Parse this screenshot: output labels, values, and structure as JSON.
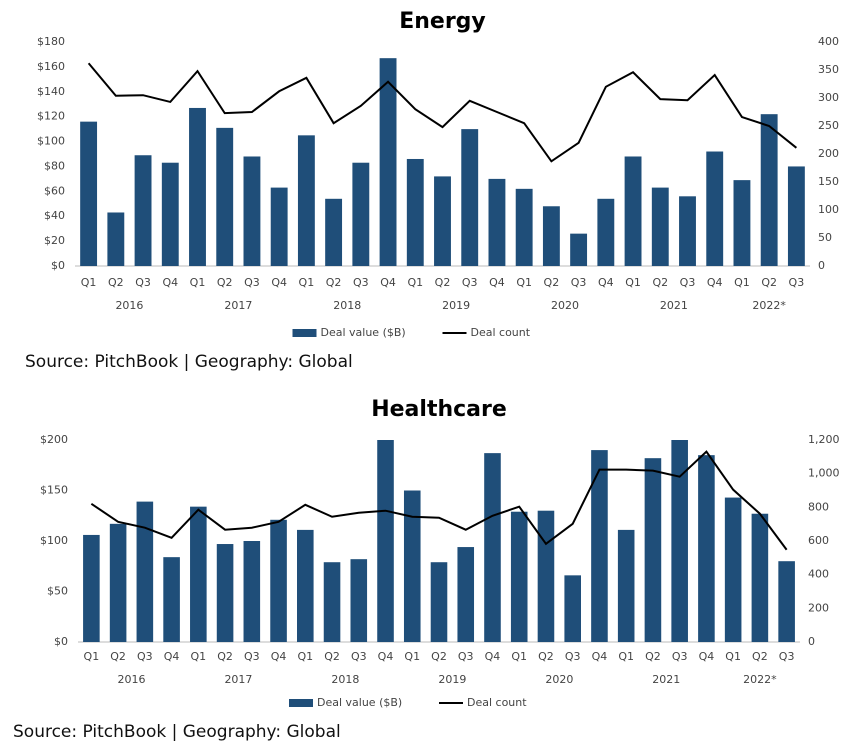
{
  "chart_data": [
    {
      "type": "bar-line",
      "title": "Energy",
      "categories": [
        "Q1",
        "Q2",
        "Q3",
        "Q4",
        "Q1",
        "Q2",
        "Q3",
        "Q4",
        "Q1",
        "Q2",
        "Q3",
        "Q4",
        "Q1",
        "Q2",
        "Q3",
        "Q4",
        "Q1",
        "Q2",
        "Q3",
        "Q4",
        "Q1",
        "Q2",
        "Q3",
        "Q4",
        "Q1",
        "Q2",
        "Q3"
      ],
      "year_labels": [
        "2016",
        "2017",
        "2018",
        "2019",
        "2020",
        "2021",
        "2022*"
      ],
      "series": [
        {
          "name": "Deal value ($B)",
          "type": "bar",
          "color": "#1f4e79",
          "values": [
            116,
            43,
            89,
            83,
            127,
            111,
            88,
            63,
            105,
            54,
            83,
            167,
            86,
            72,
            110,
            70,
            62,
            48,
            26,
            54,
            88,
            63,
            56,
            92,
            69,
            122,
            80
          ]
        },
        {
          "name": "Deal count",
          "type": "line",
          "axis": "y2",
          "color": "#000000",
          "values": [
            362,
            304,
            305,
            293,
            348,
            273,
            275,
            312,
            336,
            255,
            286,
            329,
            280,
            248,
            295,
            275,
            255,
            187,
            220,
            320,
            346,
            298,
            296,
            341,
            266,
            250,
            211
          ]
        }
      ],
      "ylim": [
        0,
        180
      ],
      "yticks": [
        {
          "value": 0,
          "label": "$0"
        },
        {
          "value": 20,
          "label": "$20"
        },
        {
          "value": 40,
          "label": "$40"
        },
        {
          "value": 60,
          "label": "$60"
        },
        {
          "value": 80,
          "label": "$80"
        },
        {
          "value": 100,
          "label": "$100"
        },
        {
          "value": 120,
          "label": "$120"
        },
        {
          "value": 140,
          "label": "$140"
        },
        {
          "value": 160,
          "label": "$160"
        },
        {
          "value": 180,
          "label": "$180"
        }
      ],
      "y2lim": [
        0,
        400
      ],
      "y2ticks": [
        0,
        50,
        100,
        150,
        200,
        250,
        300,
        350,
        400
      ],
      "source": "Source: PitchBook | Geography: Global"
    },
    {
      "type": "bar-line",
      "title": "Healthcare",
      "categories": [
        "Q1",
        "Q2",
        "Q3",
        "Q4",
        "Q1",
        "Q2",
        "Q3",
        "Q4",
        "Q1",
        "Q2",
        "Q3",
        "Q4",
        "Q1",
        "Q2",
        "Q3",
        "Q4",
        "Q1",
        "Q2",
        "Q3",
        "Q4",
        "Q1",
        "Q2",
        "Q3",
        "Q4",
        "Q1",
        "Q2",
        "Q3"
      ],
      "year_labels": [
        "2016",
        "2017",
        "2018",
        "2019",
        "2020",
        "2021",
        "2022*"
      ],
      "series": [
        {
          "name": "Deal value ($B)",
          "type": "bar",
          "color": "#1f4e79",
          "values": [
            106,
            117,
            139,
            84,
            134,
            97,
            100,
            121,
            111,
            79,
            82,
            200,
            150,
            79,
            94,
            187,
            129,
            130,
            66,
            190,
            111,
            182,
            200,
            185,
            143,
            127,
            80
          ]
        },
        {
          "name": "Deal count",
          "type": "line",
          "axis": "y2",
          "color": "#000000",
          "values": [
            821,
            714,
            679,
            619,
            786,
            667,
            679,
            714,
            815,
            744,
            768,
            780,
            744,
            738,
            667,
            750,
            804,
            583,
            702,
            1024,
            1024,
            1018,
            982,
            1131,
            905,
            762,
            548
          ]
        }
      ],
      "ylim": [
        0,
        200
      ],
      "yticks": [
        {
          "value": 0,
          "label": "$0"
        },
        {
          "value": 50,
          "label": "$50"
        },
        {
          "value": 100,
          "label": "$100"
        },
        {
          "value": 150,
          "label": "$150"
        },
        {
          "value": 200,
          "label": "$200"
        }
      ],
      "y2lim": [
        0,
        1200
      ],
      "y2ticks": [
        0,
        200,
        400,
        600,
        800,
        {
          "value": 1000,
          "label": "1,000"
        },
        {
          "value": 1200,
          "label": "1,200"
        }
      ],
      "source": "Source: PitchBook | Geography: Global"
    }
  ]
}
